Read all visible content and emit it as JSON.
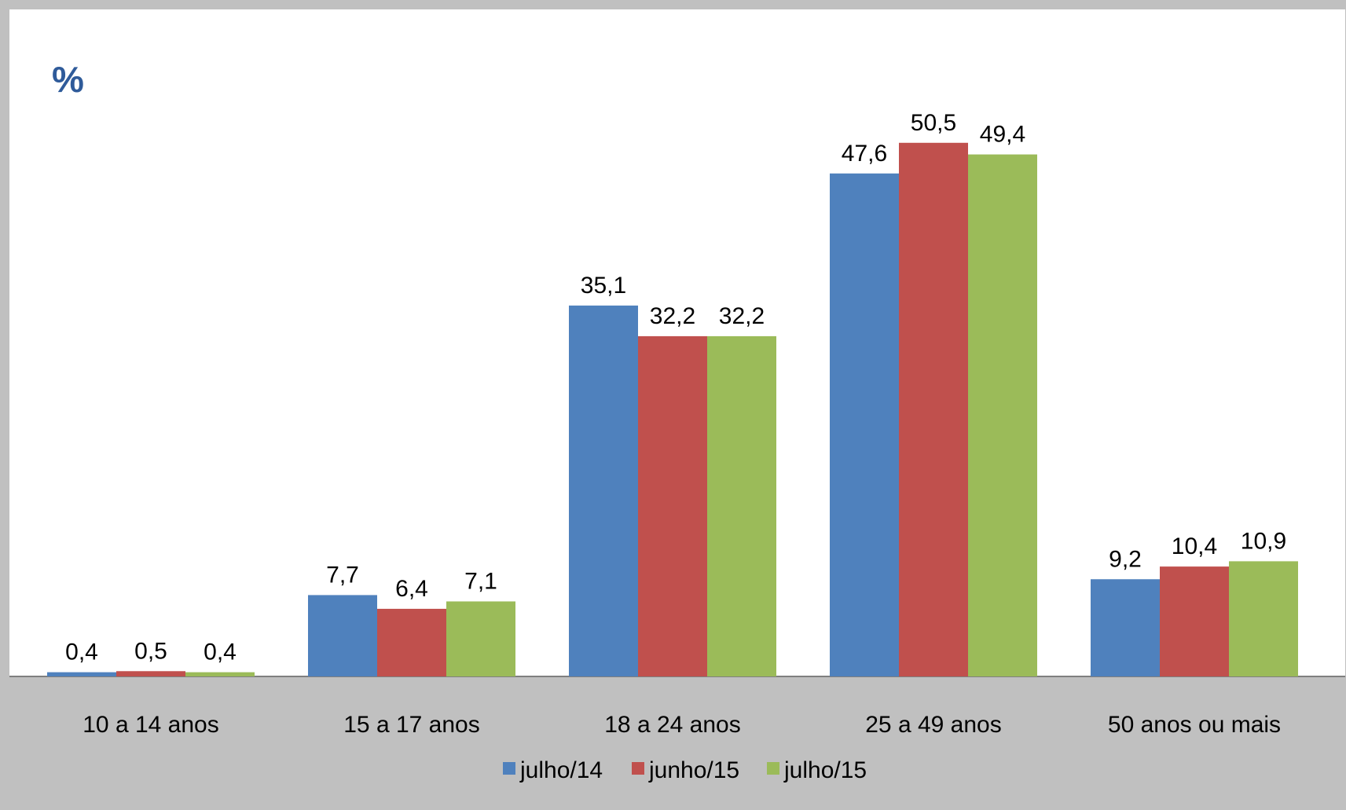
{
  "chart_data": {
    "type": "bar",
    "title": "",
    "unit_label": "%",
    "categories": [
      "10 a 14 anos",
      "15 a 17 anos",
      "18 a 24 anos",
      "25 a 49 anos",
      "50 anos ou mais"
    ],
    "series": [
      {
        "name": "julho/14",
        "color": "#4f81bd",
        "values": [
          0.4,
          7.7,
          35.1,
          47.6,
          9.2
        ],
        "labels": [
          "0,4",
          "7,7",
          "35,1",
          "47,6",
          "9,2"
        ]
      },
      {
        "name": "junho/15",
        "color": "#c0504d",
        "values": [
          0.5,
          6.4,
          32.2,
          50.5,
          10.4
        ],
        "labels": [
          "0,5",
          "6,4",
          "32,2",
          "50,5",
          "10,4"
        ]
      },
      {
        "name": "julho/15",
        "color": "#9bbb59",
        "values": [
          0.4,
          7.1,
          32.2,
          49.4,
          10.9
        ],
        "labels": [
          "0,4",
          "7,1",
          "32,2",
          "49,4",
          "10,9"
        ]
      }
    ],
    "ylim": [
      0,
      60
    ],
    "legend_position": "bottom",
    "grid": false
  }
}
